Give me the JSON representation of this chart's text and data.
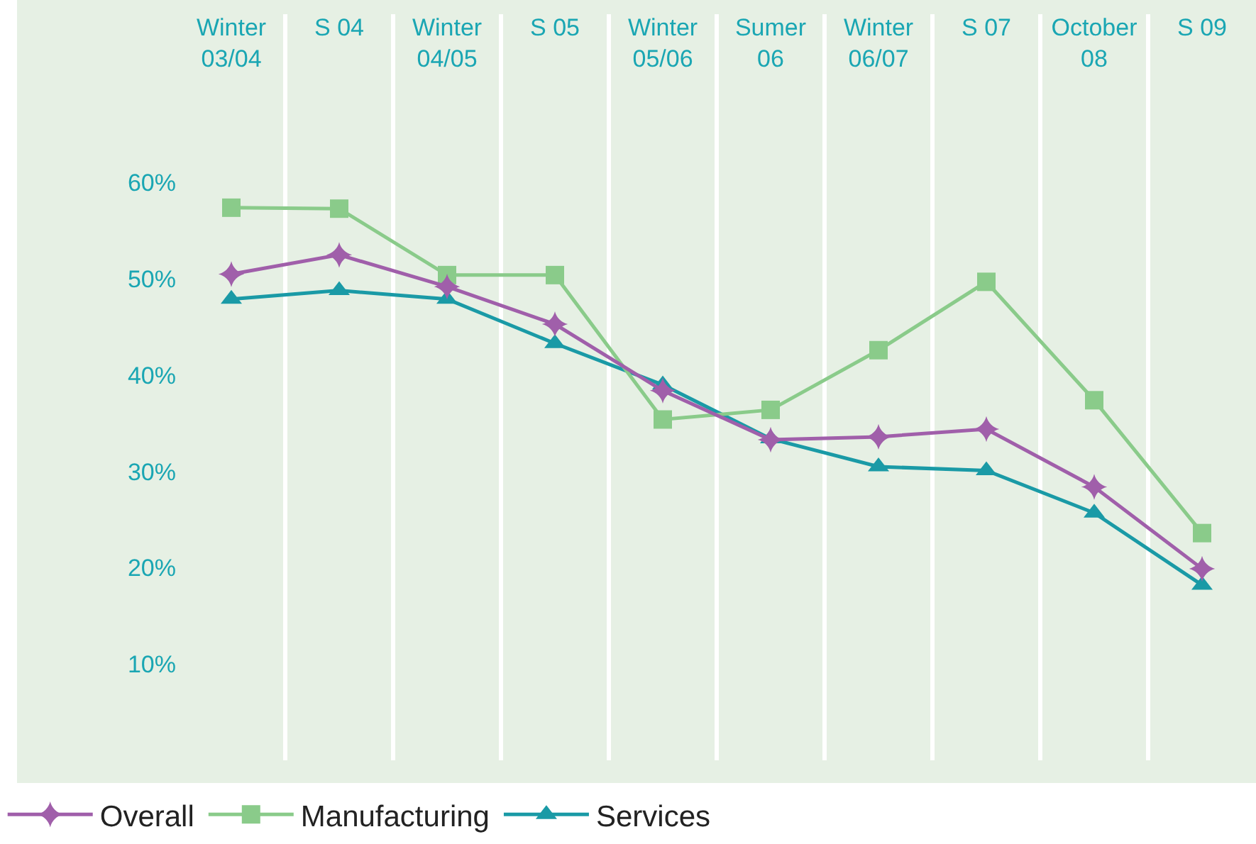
{
  "chart_data": {
    "type": "line",
    "categories": [
      "Winter 03/04",
      "S 04",
      "Winter 04/05",
      "S 05",
      "Winter 05/06",
      "Sumer 06",
      "Winter 06/07",
      "S 07",
      "October 08",
      "S 09"
    ],
    "ylim": [
      0,
      77.5
    ],
    "yticks": [
      {
        "value": 10,
        "label": "10%"
      },
      {
        "value": 20,
        "label": "20%"
      },
      {
        "value": 30,
        "label": "30%"
      },
      {
        "value": 40,
        "label": "40%"
      },
      {
        "value": 50,
        "label": "50%"
      },
      {
        "value": 60,
        "label": "60%"
      }
    ],
    "grid": "x",
    "legend": "bottom",
    "line_style": "solid",
    "series": [
      {
        "name": "Overall",
        "color": "#a05faa",
        "marker": "star",
        "values": [
          50.5,
          52.5,
          49.2,
          45.3,
          38.4,
          33.3,
          33.6,
          34.4,
          28.4,
          19.9
        ]
      },
      {
        "name": "Manufacturing",
        "color": "#8acb8a",
        "marker": "square",
        "values": [
          57.4,
          57.3,
          50.4,
          50.4,
          35.4,
          36.4,
          42.6,
          49.7,
          37.4,
          23.6
        ]
      },
      {
        "name": "Services",
        "color": "#1a9aa6",
        "marker": "triangle",
        "values": [
          47.9,
          48.8,
          47.9,
          43.3,
          39.0,
          33.4,
          30.5,
          30.1,
          25.7,
          18.2
        ]
      }
    ]
  }
}
